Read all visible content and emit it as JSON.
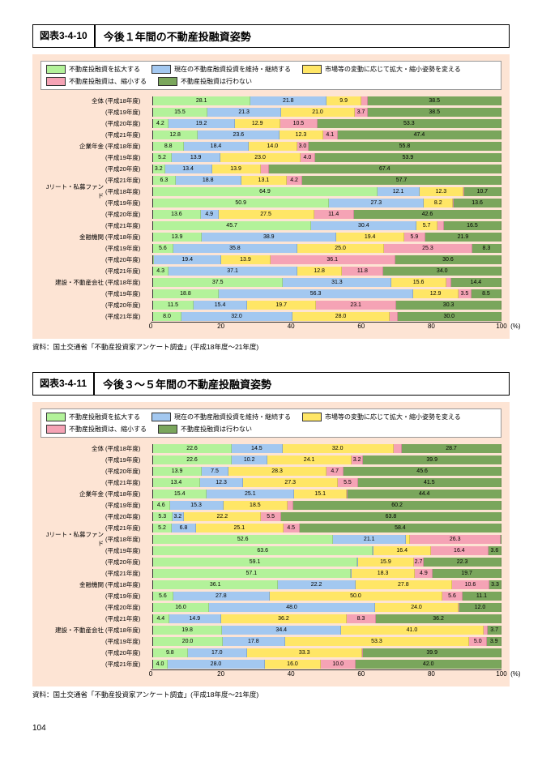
{
  "page_number": "104",
  "colors": {
    "expand": "#b3f29a",
    "maintain": "#a3c8f0",
    "adjust": "#ffe666",
    "shrink": "#f5a3b5",
    "none": "#7aa65c",
    "chart_bg": "#fde4d4"
  },
  "legend_labels": {
    "expand": "不動産投融資を拡大する",
    "maintain": "現在の不動産融資投資を維持・継続する",
    "adjust": "市場等の変動に応じて拡大・縮小姿勢を変える",
    "shrink": "不動産投融資は、縮小する",
    "none": "不動産投融資は行わない"
  },
  "axis": {
    "ticks": [
      0,
      20,
      40,
      60,
      80,
      100
    ],
    "unit": "(%)"
  },
  "charts": [
    {
      "num": "図表3-4-10",
      "title": "今後１年間の不動産投融資姿勢",
      "source": "資料：国土交通省「不動産投資家アンケート調査」(平成18年度〜21年度)",
      "groups": [
        {
          "name": "全体",
          "rows": [
            {
              "year": "(平成18年度)",
              "v": [
                28.1,
                21.8,
                9.9,
                1.7,
                38.5
              ]
            },
            {
              "year": "(平成19年度)",
              "v": [
                15.5,
                21.3,
                21.0,
                3.7,
                38.5
              ]
            },
            {
              "year": "(平成20年度)",
              "v": [
                4.2,
                19.2,
                12.9,
                10.5,
                53.3
              ]
            },
            {
              "year": "(平成21年度)",
              "v": [
                12.8,
                23.6,
                12.3,
                4.1,
                47.4
              ]
            }
          ]
        },
        {
          "name": "企業年金",
          "rows": [
            {
              "year": "(平成18年度)",
              "v": [
                8.8,
                18.4,
                14.0,
                3.0,
                55.8
              ]
            },
            {
              "year": "(平成19年度)",
              "v": [
                5.2,
                13.9,
                23.0,
                4.0,
                53.9
              ]
            },
            {
              "year": "(平成20年度)",
              "v": [
                3.2,
                13.4,
                13.9,
                2.1,
                67.4
              ]
            },
            {
              "year": "(平成21年度)",
              "v": [
                6.3,
                18.8,
                13.1,
                4.2,
                57.7
              ]
            }
          ]
        },
        {
          "name": "Jリート・私募ファンド",
          "rows": [
            {
              "year": "(平成18年度)",
              "v": [
                64.9,
                12.1,
                12.3,
                0.0,
                10.7
              ]
            },
            {
              "year": "(平成19年度)",
              "v": [
                50.9,
                27.3,
                8.2,
                0.0,
                13.6
              ]
            },
            {
              "year": "(平成20年度)",
              "v": [
                13.6,
                4.9,
                27.5,
                11.4,
                42.6
              ]
            },
            {
              "year": "(平成21年度)",
              "v": [
                45.7,
                30.4,
                5.7,
                1.7,
                16.5
              ]
            }
          ]
        },
        {
          "name": "金融機関",
          "rows": [
            {
              "year": "(平成18年度)",
              "v": [
                13.9,
                38.9,
                19.4,
                5.9,
                21.9
              ]
            },
            {
              "year": "(平成19年度)",
              "v": [
                5.6,
                35.8,
                25.0,
                25.3,
                8.3
              ]
            },
            {
              "year": "(平成20年度)",
              "v": [
                0.0,
                19.4,
                13.9,
                36.1,
                30.6
              ]
            },
            {
              "year": "(平成21年度)",
              "v": [
                4.3,
                37.1,
                12.8,
                11.8,
                34.0
              ]
            }
          ]
        },
        {
          "name": "建設・不動産会社",
          "rows": [
            {
              "year": "(平成18年度)",
              "v": [
                37.5,
                31.3,
                15.6,
                1.2,
                14.4
              ]
            },
            {
              "year": "(平成19年度)",
              "v": [
                18.8,
                56.3,
                12.9,
                3.5,
                8.5
              ]
            },
            {
              "year": "(平成20年度)",
              "v": [
                11.5,
                15.4,
                19.7,
                23.1,
                30.3
              ]
            },
            {
              "year": "(平成21年度)",
              "v": [
                8.0,
                32.0,
                28.0,
                2.0,
                30.0
              ]
            }
          ]
        }
      ]
    },
    {
      "num": "図表3-4-11",
      "title": "今後３〜５年間の不動産投融資姿勢",
      "source": "資料：国土交通省「不動産投資家アンケート調査」(平成18年度〜21年度)",
      "groups": [
        {
          "name": "全体",
          "rows": [
            {
              "year": "(平成18年度)",
              "v": [
                22.6,
                14.5,
                32.0,
                2.2,
                28.7
              ]
            },
            {
              "year": "(平成19年度)",
              "v": [
                22.6,
                10.2,
                24.1,
                3.2,
                39.9
              ]
            },
            {
              "year": "(平成20年度)",
              "v": [
                13.9,
                7.5,
                28.3,
                4.7,
                45.6
              ]
            },
            {
              "year": "(平成21年度)",
              "v": [
                13.4,
                12.3,
                27.3,
                5.5,
                41.5
              ]
            }
          ]
        },
        {
          "name": "企業年金",
          "rows": [
            {
              "year": "(平成18年度)",
              "v": [
                15.4,
                25.1,
                15.1,
                0.0,
                44.4
              ]
            },
            {
              "year": "(平成19年度)",
              "v": [
                4.6,
                15.3,
                18.5,
                1.4,
                60.2
              ]
            },
            {
              "year": "(平成20年度)",
              "v": [
                5.3,
                3.2,
                22.2,
                5.5,
                63.8
              ]
            },
            {
              "year": "(平成21年度)",
              "v": [
                5.2,
                6.8,
                25.1,
                4.5,
                58.4
              ]
            }
          ]
        },
        {
          "name": "Jリート・私募ファンド",
          "rows": [
            {
              "year": "(平成18年度)",
              "v": [
                52.6,
                21.1,
                1.0,
                26.3,
                0.0
              ]
            },
            {
              "year": "(平成19年度)",
              "v": [
                63.6,
                0.0,
                16.4,
                16.4,
                3.6
              ]
            },
            {
              "year": "(平成20年度)",
              "v": [
                59.1,
                0.0,
                15.9,
                2.7,
                22.3
              ]
            },
            {
              "year": "(平成21年度)",
              "v": [
                57.1,
                0.0,
                18.3,
                4.9,
                19.7
              ]
            }
          ]
        },
        {
          "name": "金融機関",
          "rows": [
            {
              "year": "(平成18年度)",
              "v": [
                36.1,
                22.2,
                27.8,
                10.6,
                3.3
              ]
            },
            {
              "year": "(平成19年度)",
              "v": [
                5.6,
                27.8,
                50.0,
                5.6,
                11.1
              ]
            },
            {
              "year": "(平成20年度)",
              "v": [
                16.0,
                48.0,
                24.0,
                0.0,
                12.0
              ]
            },
            {
              "year": "(平成21年度)",
              "v": [
                4.4,
                14.9,
                36.2,
                8.3,
                36.2
              ]
            }
          ]
        },
        {
          "name": "建設・不動産会社",
          "rows": [
            {
              "year": "(平成18年度)",
              "v": [
                19.8,
                34.4,
                41.0,
                1.1,
                3.7
              ]
            },
            {
              "year": "(平成19年度)",
              "v": [
                20.0,
                17.8,
                53.3,
                5.0,
                3.9
              ]
            },
            {
              "year": "(平成20年度)",
              "v": [
                9.8,
                17.0,
                33.3,
                0.0,
                39.9
              ]
            },
            {
              "year": "(平成21年度)",
              "v": [
                4.0,
                28.0,
                16.0,
                10.0,
                42.0
              ]
            }
          ]
        }
      ]
    }
  ]
}
